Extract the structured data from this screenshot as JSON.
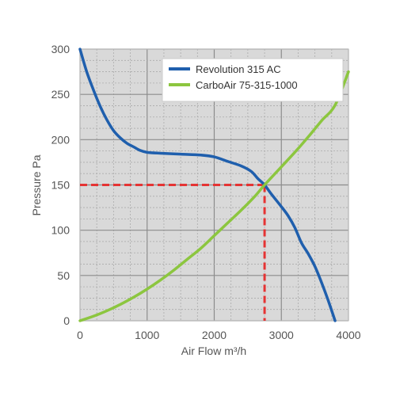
{
  "chart_data": {
    "type": "line",
    "xlabel": "Air Flow m³/h",
    "ylabel": "Pressure Pa",
    "xlim": [
      0,
      4000
    ],
    "ylim": [
      0,
      300
    ],
    "x_ticks": [
      0,
      1000,
      2000,
      3000,
      4000
    ],
    "y_ticks": [
      0,
      50,
      100,
      150,
      200,
      250,
      300
    ],
    "x_tick_labels": [
      "0",
      "1000",
      "2000",
      "3000",
      "4000"
    ],
    "y_tick_labels": [
      "0",
      "50",
      "100",
      "150",
      "200",
      "250",
      "300"
    ],
    "grid": true,
    "legend_position": "top-right",
    "series": [
      {
        "name": "Revolution 315 AC",
        "color": "#1f5fad",
        "x": [
          0,
          100,
          200,
          300,
          400,
          500,
          600,
          700,
          800,
          900,
          1000,
          1200,
          1500,
          1800,
          2000,
          2200,
          2400,
          2550,
          2650,
          2750,
          2850,
          3000,
          3100,
          3200,
          3300,
          3400,
          3500,
          3600,
          3700,
          3800
        ],
        "values": [
          300,
          275,
          255,
          237,
          222,
          210,
          202,
          196,
          192,
          188,
          186,
          185,
          184,
          183,
          181,
          176,
          171,
          165,
          157,
          150,
          140,
          126,
          116,
          103,
          86,
          74,
          60,
          42,
          22,
          0
        ]
      },
      {
        "name": "CarboAir 75-315-1000",
        "color": "#8cc63f",
        "x": [
          0,
          200,
          400,
          600,
          800,
          1000,
          1200,
          1400,
          1600,
          1800,
          2000,
          2200,
          2400,
          2600,
          2750,
          3000,
          3200,
          3400,
          3600,
          3800,
          4000
        ],
        "values": [
          0,
          5,
          11,
          18,
          26,
          35,
          45,
          56,
          68,
          80,
          94,
          108,
          122,
          137,
          150,
          170,
          186,
          203,
          221,
          238,
          275
        ]
      }
    ],
    "annotations": [
      {
        "type": "reference-lines",
        "style": "dashed",
        "color": "#e53333",
        "x": 2750,
        "y": 150
      }
    ]
  }
}
